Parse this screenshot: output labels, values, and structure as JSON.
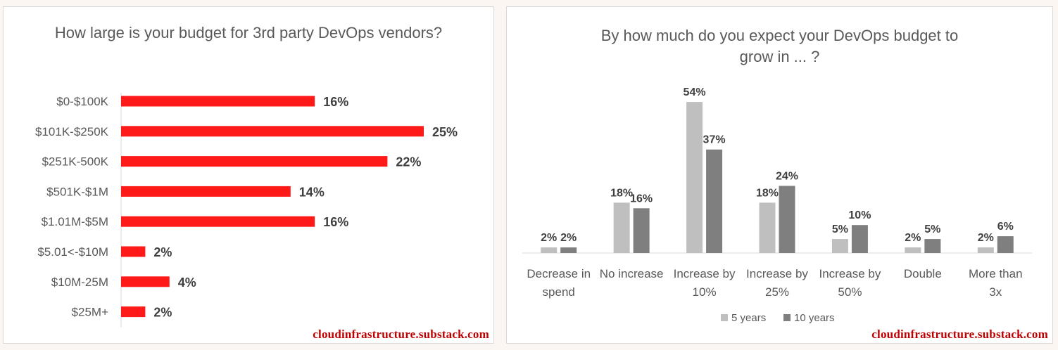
{
  "colors": {
    "bar_red": "#ff1a1a",
    "five_years": "#bfbfbf",
    "ten_years": "#7f7f7f",
    "text": "#595959",
    "label": "#404040",
    "watermark": "#c00000"
  },
  "watermark": "cloudinfrastructure.substack.com",
  "chart_data": [
    {
      "type": "bar",
      "orientation": "horizontal",
      "title": "How large is your budget for 3rd party DevOps vendors?",
      "categories": [
        "$0-$100K",
        "$101K-$250K",
        "$251K-500K",
        "$501K-$1M",
        "$1.01M-$5M",
        "$5.01<-$10M",
        "$10M-25M",
        "$25M+"
      ],
      "values": [
        16,
        25,
        22,
        14,
        16,
        2,
        4,
        2
      ],
      "data_labels": [
        "16%",
        "25%",
        "22%",
        "14%",
        "16%",
        "2%",
        "4%",
        "2%"
      ],
      "xlim": [
        0,
        25
      ],
      "grid": false
    },
    {
      "type": "bar",
      "title": "By how much do you expect your DevOps budget to grow in ... ?",
      "categories": [
        [
          "Decrease in",
          "spend"
        ],
        [
          "No increase"
        ],
        [
          "Increase by",
          "10%"
        ],
        [
          "Increase by",
          "25%"
        ],
        [
          "Increase by",
          "50%"
        ],
        [
          "Double"
        ],
        [
          "More than",
          "3x"
        ]
      ],
      "series": [
        {
          "name": "5 years",
          "values": [
            2,
            18,
            54,
            18,
            5,
            2,
            2
          ],
          "data_labels": [
            "2%",
            "18%",
            "54%",
            "18%",
            "5%",
            "2%",
            "2%"
          ]
        },
        {
          "name": "10 years",
          "values": [
            2,
            16,
            37,
            24,
            10,
            5,
            6
          ],
          "data_labels": [
            "2%",
            "16%",
            "37%",
            "24%",
            "10%",
            "5%",
            "6%"
          ]
        }
      ],
      "ylim": [
        0,
        54
      ],
      "legend": "bottom",
      "grid": false
    }
  ]
}
